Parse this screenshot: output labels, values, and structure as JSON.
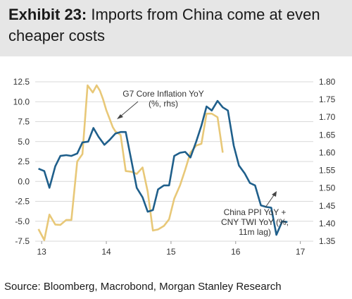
{
  "header": {
    "lead": "Exhibit 23:",
    "rest": " Imports from China come at even",
    "line2": "cheaper costs"
  },
  "source": "Source: Bloomberg, Macrobond, Morgan Stanley Research",
  "chart_data": {
    "type": "line",
    "x_ticks": [
      "13",
      "14",
      "15",
      "16",
      "17"
    ],
    "x_tick_positions": [
      2013.0,
      2014.0,
      2015.0,
      2016.0,
      2017.0
    ],
    "xlim": [
      2012.9,
      2017.2
    ],
    "y_left": {
      "ticks": [
        "12.5",
        "10.0",
        "7.5",
        "5.0",
        "2.5",
        "0.0",
        "-2.5",
        "-5.0",
        "-7.5"
      ],
      "ylim": [
        -7.5,
        12.5
      ]
    },
    "y_right": {
      "ticks": [
        "1.80",
        "1.75",
        "1.70",
        "1.65",
        "1.60",
        "1.55",
        "1.50",
        "1.45",
        "1.40",
        "1.35"
      ],
      "ylim": [
        1.35,
        1.8
      ]
    },
    "annotations": {
      "g7": [
        "G7 Core Inflation YoY",
        "(%, rhs)"
      ],
      "china": [
        "China PPI YoY +",
        "CNY TWI YoY (%,",
        "11m lag)"
      ]
    },
    "colors": {
      "blue": "#1f5f8b",
      "gold": "#e8c878"
    },
    "series": [
      {
        "key": "china_ppi",
        "axis": "left",
        "color": "#1f5f8b",
        "points": [
          [
            2012.95,
            1.6
          ],
          [
            2013.04,
            1.3
          ],
          [
            2013.12,
            -0.8
          ],
          [
            2013.21,
            1.9
          ],
          [
            2013.29,
            3.2
          ],
          [
            2013.38,
            3.3
          ],
          [
            2013.46,
            3.2
          ],
          [
            2013.55,
            3.5
          ],
          [
            2013.63,
            4.9
          ],
          [
            2013.72,
            5.0
          ],
          [
            2013.8,
            6.7
          ],
          [
            2013.88,
            5.6
          ],
          [
            2013.97,
            4.6
          ],
          [
            2014.05,
            5.2
          ],
          [
            2014.14,
            6.0
          ],
          [
            2014.22,
            6.2
          ],
          [
            2014.3,
            6.2
          ],
          [
            2014.39,
            2.5
          ],
          [
            2014.47,
            -0.8
          ],
          [
            2014.56,
            -2.0
          ],
          [
            2014.64,
            -3.8
          ],
          [
            2014.72,
            -3.6
          ],
          [
            2014.8,
            -1.0
          ],
          [
            2014.89,
            -0.5
          ],
          [
            2014.97,
            -0.5
          ],
          [
            2015.05,
            3.2
          ],
          [
            2015.14,
            3.6
          ],
          [
            2015.22,
            3.7
          ],
          [
            2015.3,
            3.0
          ],
          [
            2015.39,
            5.0
          ],
          [
            2015.47,
            7.0
          ],
          [
            2015.55,
            9.4
          ],
          [
            2015.63,
            8.9
          ],
          [
            2015.72,
            10.1
          ],
          [
            2015.8,
            9.3
          ],
          [
            2015.88,
            8.9
          ],
          [
            2015.97,
            4.5
          ],
          [
            2016.05,
            2.0
          ],
          [
            2016.14,
            1.0
          ],
          [
            2016.22,
            -0.2
          ],
          [
            2016.3,
            -0.5
          ],
          [
            2016.39,
            -3.0
          ],
          [
            2016.47,
            -3.2
          ],
          [
            2016.55,
            -3.3
          ],
          [
            2016.63,
            -6.7
          ],
          [
            2016.72,
            -5.0
          ],
          [
            2016.8,
            -5.1
          ]
        ]
      },
      {
        "key": "g7_core",
        "axis": "right",
        "color": "#e8c878",
        "points": [
          [
            2012.95,
            1.384
          ],
          [
            2013.04,
            1.353
          ],
          [
            2013.12,
            1.425
          ],
          [
            2013.21,
            1.397
          ],
          [
            2013.29,
            1.396
          ],
          [
            2013.38,
            1.41
          ],
          [
            2013.46,
            1.41
          ],
          [
            2013.55,
            1.575
          ],
          [
            2013.63,
            1.596
          ],
          [
            2013.71,
            1.79
          ],
          [
            2013.79,
            1.77
          ],
          [
            2013.85,
            1.79
          ],
          [
            2013.9,
            1.775
          ],
          [
            2013.95,
            1.75
          ],
          [
            2014.0,
            1.72
          ],
          [
            2014.05,
            1.696
          ],
          [
            2014.1,
            1.672
          ],
          [
            2014.14,
            1.66
          ],
          [
            2014.22,
            1.65
          ],
          [
            2014.3,
            1.548
          ],
          [
            2014.39,
            1.546
          ],
          [
            2014.47,
            1.54
          ],
          [
            2014.56,
            1.558
          ],
          [
            2014.64,
            1.49
          ],
          [
            2014.72,
            1.38
          ],
          [
            2014.8,
            1.383
          ],
          [
            2014.89,
            1.393
          ],
          [
            2014.97,
            1.412
          ],
          [
            2015.05,
            1.47
          ],
          [
            2015.14,
            1.508
          ],
          [
            2015.22,
            1.552
          ],
          [
            2015.3,
            1.6
          ],
          [
            2015.39,
            1.62
          ],
          [
            2015.47,
            1.625
          ],
          [
            2015.55,
            1.71
          ],
          [
            2015.63,
            1.71
          ],
          [
            2015.72,
            1.7
          ],
          [
            2015.8,
            1.6
          ]
        ]
      }
    ]
  }
}
